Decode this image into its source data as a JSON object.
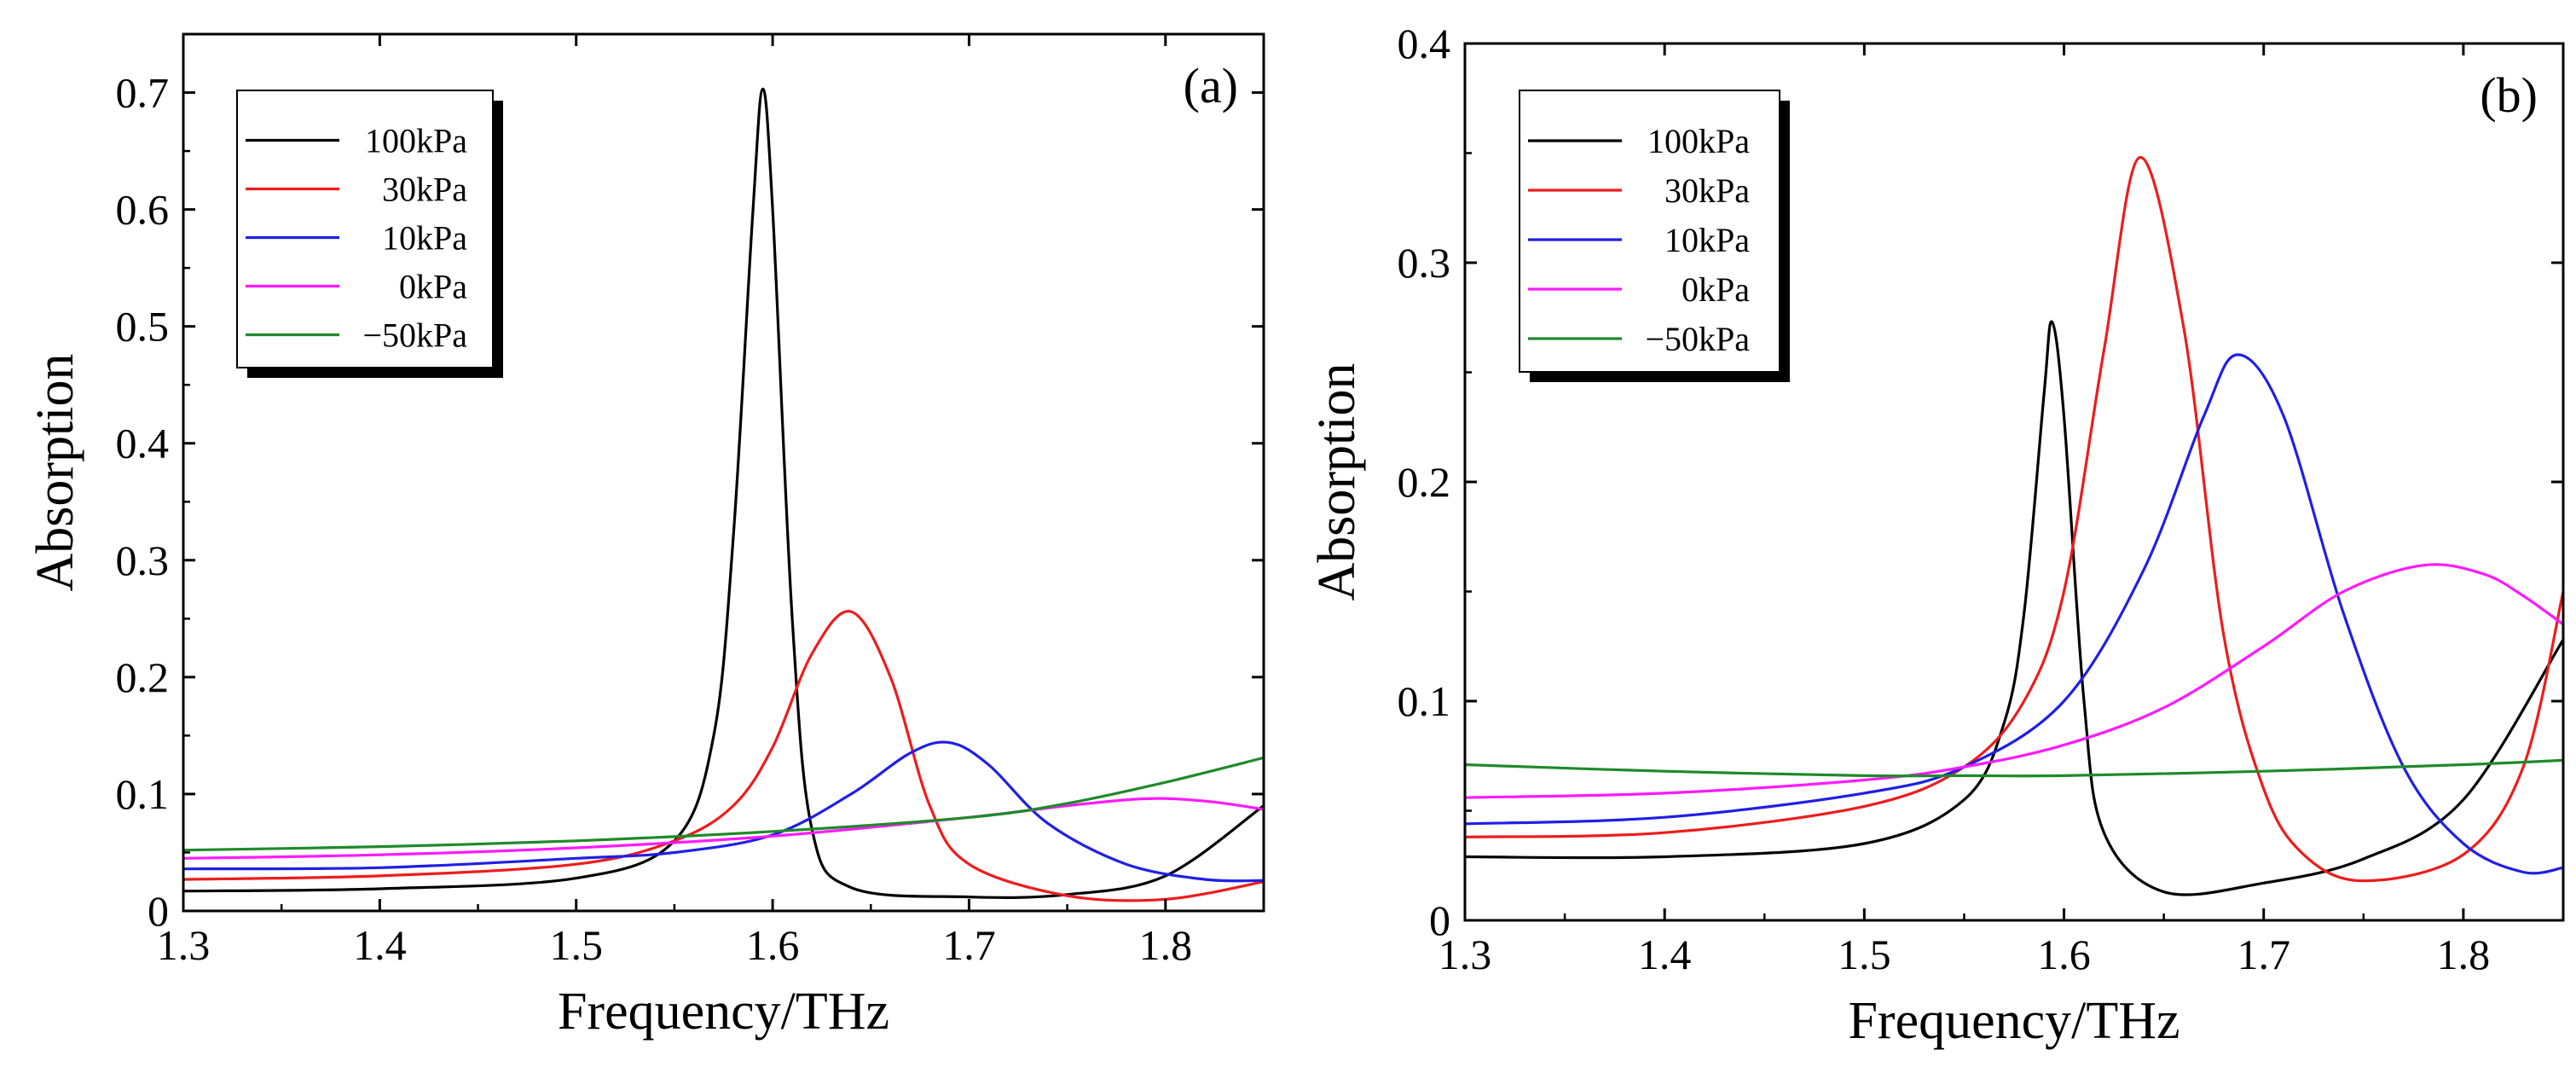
{
  "chart_data": [
    {
      "type": "line",
      "panel_label": "(a)",
      "xlabel": "Frequency/THz",
      "ylabel": "Absorption",
      "xlim": [
        1.3,
        1.85
      ],
      "ylim": [
        0,
        0.75
      ],
      "xticks": [
        1.3,
        1.4,
        1.5,
        1.6,
        1.7,
        1.8
      ],
      "xtick_labels": [
        "1.3",
        "1.4",
        "1.5",
        "1.6",
        "1.7",
        "1.8"
      ],
      "yticks": [
        0,
        0.1,
        0.2,
        0.3,
        0.4,
        0.5,
        0.6,
        0.7
      ],
      "ytick_labels": [
        "0",
        "0.1",
        "0.2",
        "0.3",
        "0.4",
        "0.5",
        "0.6",
        "0.7"
      ],
      "grid": false,
      "legend_position": "top-left",
      "series": [
        {
          "name": "100kPa",
          "color": "#000000",
          "x": [
            1.3,
            1.4,
            1.5,
            1.55,
            1.57,
            1.58,
            1.59,
            1.595,
            1.6,
            1.61,
            1.62,
            1.64,
            1.7,
            1.75,
            1.8,
            1.85
          ],
          "y": [
            0.017,
            0.019,
            0.028,
            0.06,
            0.15,
            0.32,
            0.6,
            0.703,
            0.6,
            0.25,
            0.07,
            0.02,
            0.012,
            0.014,
            0.03,
            0.09
          ]
        },
        {
          "name": "30kPa",
          "color": "#ee1c1c",
          "x": [
            1.3,
            1.4,
            1.5,
            1.55,
            1.58,
            1.6,
            1.62,
            1.64,
            1.66,
            1.68,
            1.7,
            1.75,
            1.8,
            1.85
          ],
          "y": [
            0.027,
            0.03,
            0.04,
            0.06,
            0.09,
            0.14,
            0.22,
            0.256,
            0.2,
            0.09,
            0.04,
            0.013,
            0.01,
            0.025
          ]
        },
        {
          "name": "10kPa",
          "color": "#1f1fe6",
          "x": [
            1.3,
            1.4,
            1.5,
            1.55,
            1.6,
            1.64,
            1.67,
            1.69,
            1.71,
            1.74,
            1.78,
            1.82,
            1.85
          ],
          "y": [
            0.036,
            0.037,
            0.045,
            0.05,
            0.065,
            0.1,
            0.135,
            0.144,
            0.125,
            0.075,
            0.04,
            0.027,
            0.026
          ]
        },
        {
          "name": "0kPa",
          "color": "#ff1aff",
          "x": [
            1.3,
            1.4,
            1.5,
            1.6,
            1.7,
            1.75,
            1.79,
            1.82,
            1.85
          ],
          "y": [
            0.045,
            0.048,
            0.054,
            0.064,
            0.08,
            0.09,
            0.096,
            0.094,
            0.087
          ]
        },
        {
          "name": "−50kPa",
          "color": "#1f8a2a",
          "x": [
            1.3,
            1.4,
            1.5,
            1.6,
            1.7,
            1.75,
            1.8,
            1.85
          ],
          "y": [
            0.052,
            0.055,
            0.06,
            0.068,
            0.08,
            0.092,
            0.11,
            0.131
          ]
        }
      ]
    },
    {
      "type": "line",
      "panel_label": "(b)",
      "xlabel": "Frequency/THz",
      "ylabel": "Absorption",
      "xlim": [
        1.3,
        1.85
      ],
      "ylim": [
        0,
        0.4
      ],
      "xticks": [
        1.3,
        1.4,
        1.5,
        1.6,
        1.7,
        1.8
      ],
      "xtick_labels": [
        "1.3",
        "1.4",
        "1.5",
        "1.6",
        "1.7",
        "1.8"
      ],
      "yticks": [
        0,
        0.1,
        0.2,
        0.3,
        0.4
      ],
      "ytick_labels": [
        "0",
        "0.1",
        "0.2",
        "0.3",
        "0.4"
      ],
      "grid": false,
      "legend_position": "top-left",
      "series": [
        {
          "name": "100kPa",
          "color": "#000000",
          "x": [
            1.3,
            1.4,
            1.5,
            1.55,
            1.57,
            1.58,
            1.59,
            1.594,
            1.6,
            1.61,
            1.62,
            1.65,
            1.7,
            1.75,
            1.8,
            1.85
          ],
          "y": [
            0.029,
            0.029,
            0.035,
            0.055,
            0.09,
            0.14,
            0.24,
            0.273,
            0.23,
            0.1,
            0.04,
            0.013,
            0.017,
            0.028,
            0.055,
            0.128
          ]
        },
        {
          "name": "30kPa",
          "color": "#ee1c1c",
          "x": [
            1.3,
            1.4,
            1.5,
            1.55,
            1.58,
            1.6,
            1.62,
            1.638,
            1.66,
            1.68,
            1.7,
            1.72,
            1.75,
            1.8,
            1.83,
            1.85
          ],
          "y": [
            0.038,
            0.04,
            0.052,
            0.07,
            0.1,
            0.15,
            0.26,
            0.348,
            0.27,
            0.13,
            0.06,
            0.03,
            0.018,
            0.03,
            0.07,
            0.15
          ]
        },
        {
          "name": "10kPa",
          "color": "#1f1fe6",
          "x": [
            1.3,
            1.4,
            1.5,
            1.55,
            1.6,
            1.64,
            1.67,
            1.687,
            1.71,
            1.74,
            1.77,
            1.8,
            1.83,
            1.85
          ],
          "y": [
            0.044,
            0.047,
            0.058,
            0.07,
            0.1,
            0.16,
            0.23,
            0.258,
            0.23,
            0.14,
            0.07,
            0.035,
            0.022,
            0.024
          ]
        },
        {
          "name": "0kPa",
          "color": "#ff1aff",
          "x": [
            1.3,
            1.4,
            1.5,
            1.55,
            1.6,
            1.65,
            1.7,
            1.74,
            1.78,
            1.81,
            1.83,
            1.85
          ],
          "y": [
            0.056,
            0.058,
            0.064,
            0.07,
            0.08,
            0.097,
            0.125,
            0.15,
            0.162,
            0.158,
            0.148,
            0.135
          ]
        },
        {
          "name": "−50kPa",
          "color": "#1f8a2a",
          "x": [
            1.3,
            1.4,
            1.5,
            1.55,
            1.6,
            1.7,
            1.8,
            1.85
          ],
          "y": [
            0.071,
            0.068,
            0.066,
            0.066,
            0.066,
            0.068,
            0.071,
            0.073
          ]
        }
      ]
    }
  ]
}
